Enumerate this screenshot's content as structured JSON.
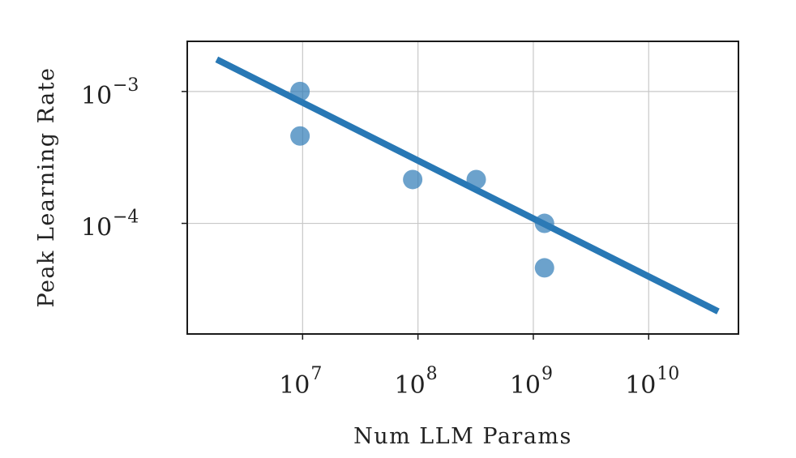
{
  "chart_data": {
    "type": "scatter",
    "title": "",
    "xlabel": "Num LLM Params",
    "ylabel": "Peak Learning Rate",
    "xscale": "log",
    "yscale": "log",
    "xlim": [
      1000000,
      60000000000
    ],
    "ylim": [
      1.45e-05,
      0.0024
    ],
    "grid": true,
    "legend": "none",
    "colors": {
      "points": "#2e7bb6",
      "fit": "#2878b5",
      "grid": "#c8c8c8",
      "frame": "#1a1a1a"
    },
    "x_ticks": [
      {
        "value": 10000000,
        "base": "10",
        "exp": "7"
      },
      {
        "value": 100000000,
        "base": "10",
        "exp": "8"
      },
      {
        "value": 1000000000,
        "base": "10",
        "exp": "9"
      },
      {
        "value": 10000000000,
        "base": "10",
        "exp": "10"
      }
    ],
    "y_ticks": [
      {
        "value": 0.001,
        "base": "10",
        "exp": "−3"
      },
      {
        "value": 0.0001,
        "base": "10",
        "exp": "−4"
      }
    ],
    "points": [
      {
        "x": 9500000,
        "y": 0.001
      },
      {
        "x": 9500000,
        "y": 0.00046
      },
      {
        "x": 90000000,
        "y": 0.000215
      },
      {
        "x": 320000000,
        "y": 0.000215
      },
      {
        "x": 1250000000,
        "y": 0.0001
      },
      {
        "x": 1250000000,
        "y": 4.6e-05
      }
    ],
    "fit_line": {
      "x": [
        1800000,
        40000000000
      ],
      "y": [
        0.00175,
        2.15e-05
      ]
    }
  }
}
